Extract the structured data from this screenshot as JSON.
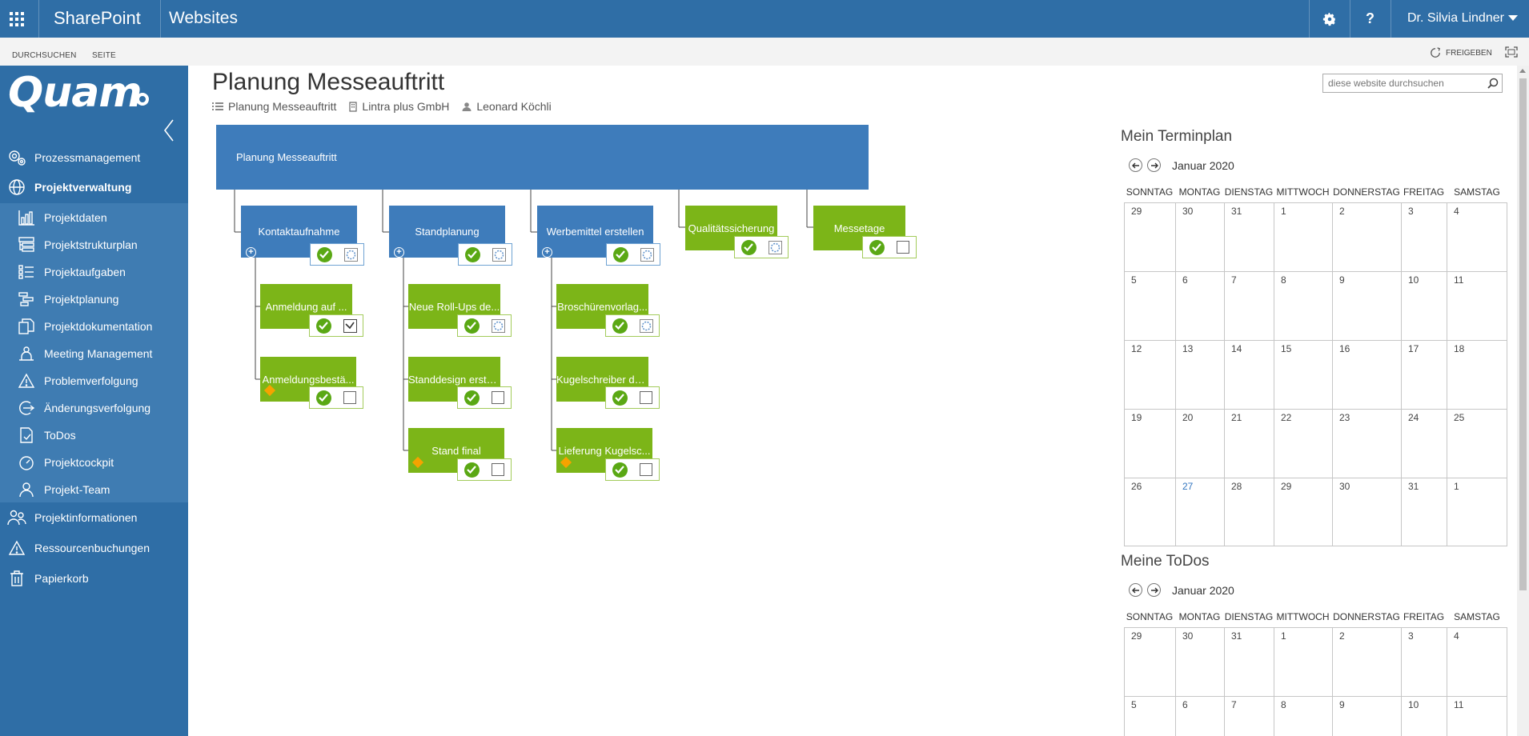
{
  "suitebar": {
    "brand": "SharePoint",
    "site": "Websites",
    "settings_icon": "gear-icon",
    "help_label": "?",
    "user": "Dr. Silvia Lindner"
  },
  "ribbon": {
    "browse": "DURCHSUCHEN",
    "page": "SEITE",
    "share": "FREIGEBEN"
  },
  "leftnav": {
    "logo": "Quam",
    "items": [
      {
        "label": "Prozessmanagement",
        "icon": "gears-icon"
      },
      {
        "label": "Projektverwaltung",
        "icon": "globe-icon"
      },
      {
        "label": "Projektdaten",
        "icon": "bar-chart-icon"
      },
      {
        "label": "Projektstrukturplan",
        "icon": "hierarchy-icon"
      },
      {
        "label": "Projektaufgaben",
        "icon": "task-list-icon"
      },
      {
        "label": "Projektplanung",
        "icon": "gantt-icon"
      },
      {
        "label": "Projektdokumentation",
        "icon": "documents-icon"
      },
      {
        "label": "Meeting Management",
        "icon": "meeting-icon"
      },
      {
        "label": "Problemverfolgung",
        "icon": "warning-icon"
      },
      {
        "label": "Änderungsverfolgung",
        "icon": "change-icon"
      },
      {
        "label": "ToDos",
        "icon": "todo-icon"
      },
      {
        "label": "Projektcockpit",
        "icon": "gauge-icon"
      },
      {
        "label": "Projekt-Team",
        "icon": "team-icon"
      },
      {
        "label": "Projektinformationen",
        "icon": "people-icon"
      },
      {
        "label": "Ressourcenbuchungen",
        "icon": "warning-icon"
      },
      {
        "label": "Papierkorb",
        "icon": "trash-icon"
      }
    ]
  },
  "page": {
    "title": "Planung Messeauftritt",
    "breadcrumb": [
      "Planung Messeauftritt",
      "Lintra plus GmbH",
      "Leonard Köchli"
    ],
    "search_placeholder": "diese website durchsuchen"
  },
  "tree": {
    "root": "Planung Messeauftritt",
    "phases": [
      {
        "label": "Kontaktaufnahme",
        "color": "blue",
        "children": [
          {
            "label": "Anmeldung auf ...",
            "done": true
          },
          {
            "label": "Anmeldungsbestä...",
            "milestone": true
          }
        ]
      },
      {
        "label": "Standplanung",
        "color": "blue",
        "children": [
          {
            "label": "Neue Roll-Ups de..."
          },
          {
            "label": "Standdesign erste..."
          },
          {
            "label": "Stand final",
            "milestone": true
          }
        ]
      },
      {
        "label": "Werbemittel erstellen",
        "color": "blue",
        "children": [
          {
            "label": "Broschürenvorlag..."
          },
          {
            "label": "Kugelschreiber de..."
          },
          {
            "label": "Lieferung Kugelsc...",
            "milestone": true
          }
        ]
      },
      {
        "label": "Qualitätssicherung",
        "color": "green",
        "children": []
      },
      {
        "label": "Messetage",
        "color": "green",
        "children": []
      }
    ],
    "colors": {
      "blue": "#3e7cbb",
      "green": "#7cb518",
      "milestone": "#f5a300"
    }
  },
  "calendar": {
    "title": "Mein Terminplan",
    "month": "Januar 2020",
    "days": [
      "SONNTAG",
      "MONTAG",
      "DIENSTAG",
      "MITTWOCH",
      "DONNERSTAG",
      "FREITAG",
      "SAMSTAG"
    ],
    "weeks": [
      [
        "29",
        "30",
        "31",
        "1",
        "2",
        "3",
        "4"
      ],
      [
        "5",
        "6",
        "7",
        "8",
        "9",
        "10",
        "11"
      ],
      [
        "12",
        "13",
        "14",
        "15",
        "16",
        "17",
        "18"
      ],
      [
        "19",
        "20",
        "21",
        "22",
        "23",
        "24",
        "25"
      ],
      [
        "26",
        "27",
        "28",
        "29",
        "30",
        "31",
        "1"
      ]
    ],
    "today": "27"
  },
  "todos": {
    "title": "Meine ToDos",
    "month": "Januar 2020",
    "days": [
      "SONNTAG",
      "MONTAG",
      "DIENSTAG",
      "MITTWOCH",
      "DONNERSTAG",
      "FREITAG",
      "SAMSTAG"
    ],
    "weeks": [
      [
        "29",
        "30",
        "31",
        "1",
        "2",
        "3",
        "4"
      ],
      [
        "5",
        "6",
        "7",
        "8",
        "9",
        "10",
        "11"
      ]
    ]
  }
}
